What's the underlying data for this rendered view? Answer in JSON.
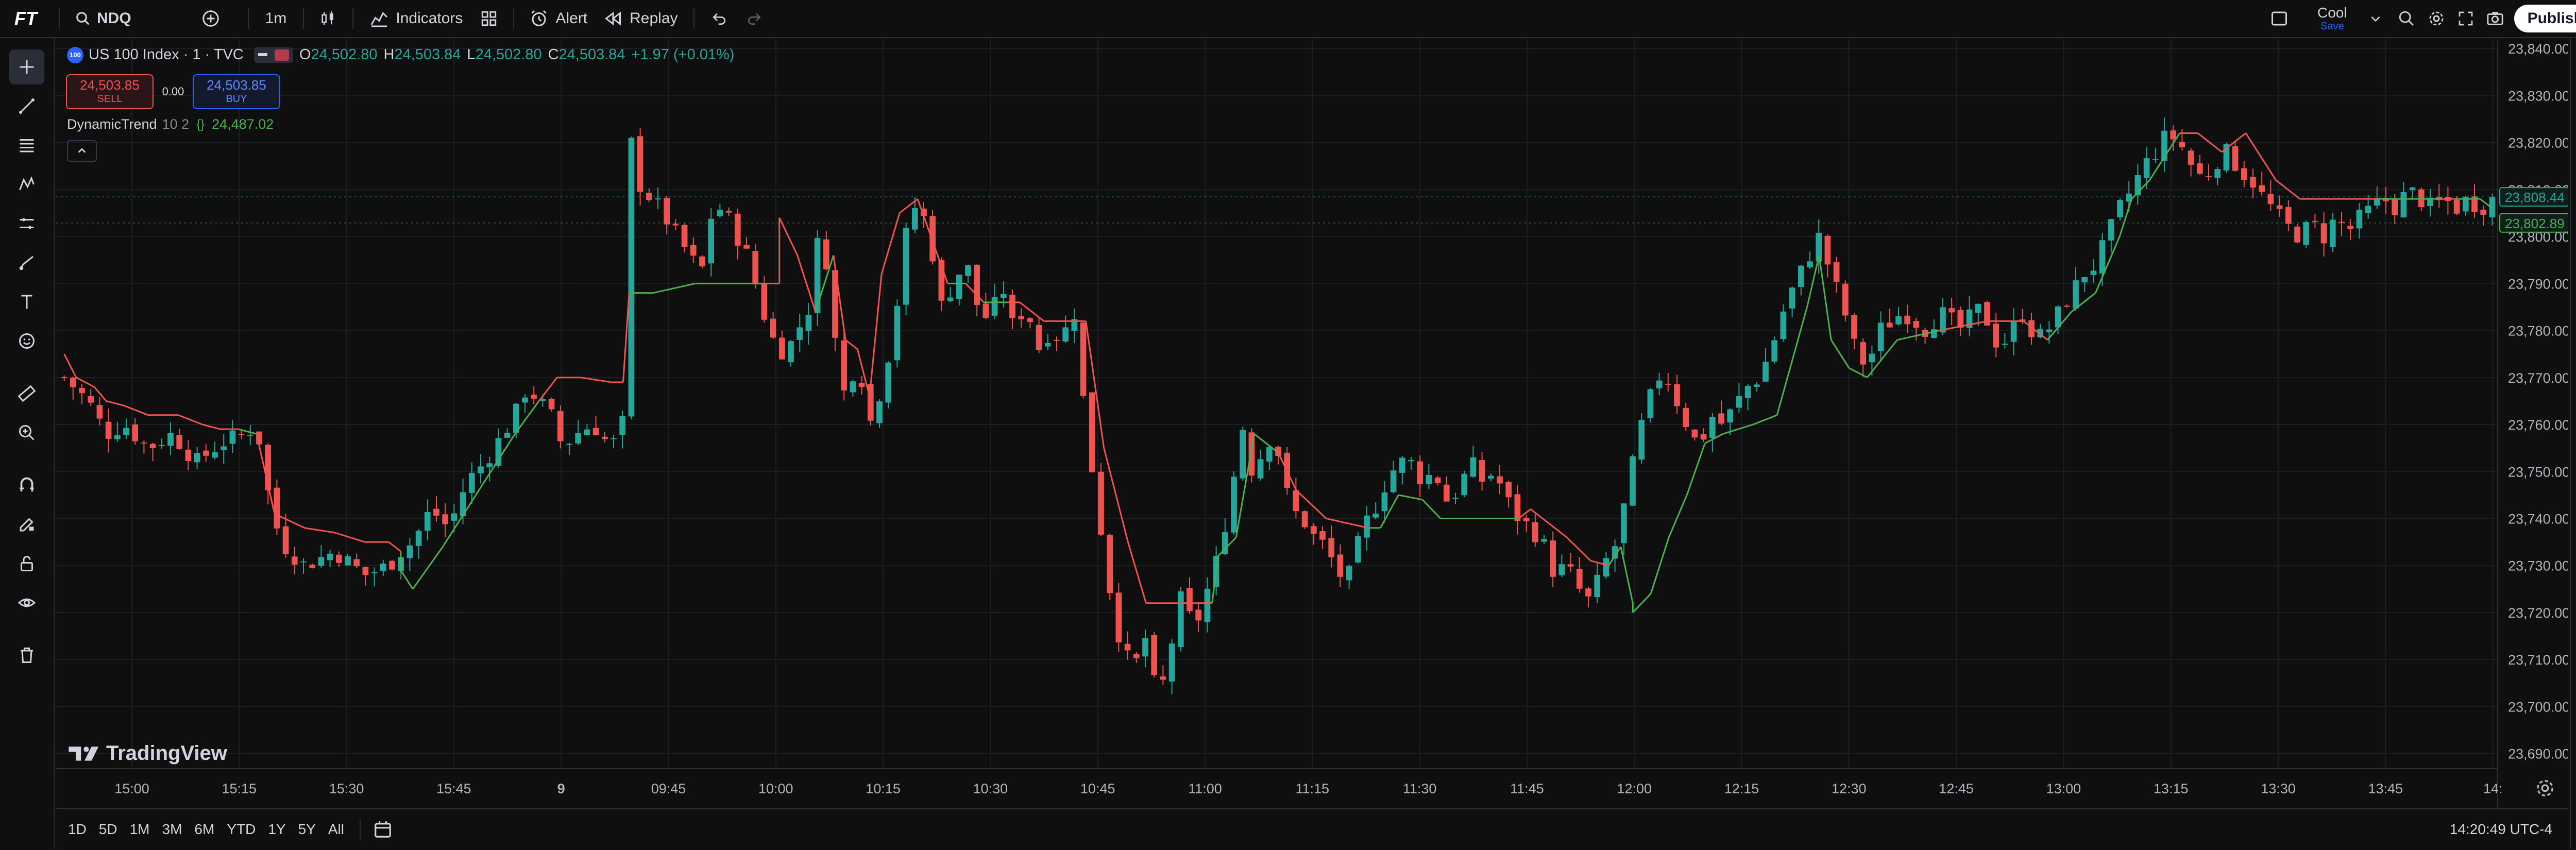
{
  "topbar": {
    "logo": "FT",
    "symbol": "NDQ",
    "interval": "1m",
    "indicators": "Indicators",
    "alert": "Alert",
    "replay": "Replay",
    "layout_name": "Cool",
    "layout_sub": "Save",
    "publish": "Publish"
  },
  "legend": {
    "title": "US 100 Index · 1 · TVC",
    "badge": "100",
    "o_label": "O",
    "o": "24,502.80",
    "h_label": "H",
    "h": "24,503.84",
    "l_label": "L",
    "l": "24,502.80",
    "c_label": "C",
    "c": "24,503.84",
    "chg": "+1.97 (+0.01%)",
    "sell_price": "24,503.85",
    "sell": "SELL",
    "spread": "0.00",
    "buy_price": "24,503.85",
    "buy": "BUY",
    "indicator_name": "DynamicTrend",
    "indicator_params": "10 2",
    "indicator_value": "24,487.02"
  },
  "watermark": "TradingView",
  "bottombar": {
    "ranges": [
      "1D",
      "5D",
      "1M",
      "3M",
      "6M",
      "YTD",
      "1Y",
      "5Y",
      "All"
    ],
    "clock": "14:20:49 UTC-4"
  },
  "colors": {
    "up": "#26a69a",
    "down": "#ef5350",
    "trend_up": "#4caf50",
    "trend_down": "#f05350",
    "bg": "#0f0f0f",
    "grid": "#1c1f26",
    "axis_text": "#b2b5be"
  },
  "chart_data": {
    "type": "candlestick",
    "y_ticks": [
      "23,840.00",
      "23,830.00",
      "23,820.00",
      "23,810.00",
      "23,800.00",
      "23,790.00",
      "23,780.00",
      "23,770.00",
      "23,760.00",
      "23,750.00",
      "23,740.00",
      "23,730.00",
      "23,720.00",
      "23,710.00",
      "23,700.00",
      "23,690.00"
    ],
    "ylim": [
      23687,
      23842
    ],
    "x_ticks": [
      "15:00",
      "15:15",
      "15:30",
      "15:45",
      "9",
      "09:45",
      "10:00",
      "10:15",
      "10:30",
      "10:45",
      "11:00",
      "11:15",
      "11:30",
      "11:45",
      "12:00",
      "12:15",
      "12:30",
      "12:45",
      "13:00",
      "13:15",
      "13:30",
      "13:45",
      "14:"
    ],
    "price_labels": [
      {
        "value": 23808.44,
        "text": "23,808.44"
      },
      {
        "value": 23802.89,
        "text": "23,802.89"
      }
    ],
    "candle_count": 275,
    "close_path": [
      [
        0,
        23770
      ],
      [
        8,
        23765
      ],
      [
        14,
        23758
      ],
      [
        20,
        23760
      ],
      [
        28,
        23755
      ],
      [
        36,
        23758
      ],
      [
        44,
        23752
      ],
      [
        52,
        23756
      ],
      [
        60,
        23758
      ],
      [
        64,
        23760
      ],
      [
        68,
        23745
      ],
      [
        72,
        23735
      ],
      [
        80,
        23730
      ],
      [
        90,
        23733
      ],
      [
        100,
        23728
      ],
      [
        108,
        23730
      ],
      [
        112,
        23733
      ],
      [
        116,
        23735
      ],
      [
        122,
        23742
      ],
      [
        128,
        23738
      ],
      [
        134,
        23748
      ],
      [
        140,
        23752
      ],
      [
        146,
        23758
      ],
      [
        150,
        23762
      ],
      [
        154,
        23768
      ],
      [
        158,
        23765
      ],
      [
        162,
        23762
      ],
      [
        166,
        23755
      ],
      [
        170,
        23758
      ],
      [
        176,
        23760
      ],
      [
        182,
        23755
      ],
      [
        187,
        23762
      ],
      [
        188,
        23822
      ],
      [
        192,
        23810
      ],
      [
        196,
        23808
      ],
      [
        200,
        23804
      ],
      [
        204,
        23800
      ],
      [
        208,
        23796
      ],
      [
        212,
        23792
      ],
      [
        216,
        23807
      ],
      [
        220,
        23805
      ],
      [
        224,
        23800
      ],
      [
        228,
        23795
      ],
      [
        232,
        23785
      ],
      [
        236,
        23778
      ],
      [
        240,
        23775
      ],
      [
        244,
        23780
      ],
      [
        248,
        23785
      ],
      [
        252,
        23805
      ],
      [
        256,
        23780
      ],
      [
        260,
        23765
      ],
      [
        264,
        23775
      ],
      [
        268,
        23760
      ],
      [
        272,
        23768
      ],
      [
        276,
        23780
      ],
      [
        280,
        23800
      ],
      [
        284,
        23808
      ],
      [
        288,
        23800
      ],
      [
        292,
        23785
      ],
      [
        296,
        23790
      ],
      [
        300,
        23795
      ],
      [
        304,
        23785
      ],
      [
        308,
        23782
      ],
      [
        312,
        23790
      ],
      [
        316,
        23780
      ],
      [
        320,
        23786
      ],
      [
        324,
        23776
      ],
      [
        328,
        23780
      ],
      [
        332,
        23778
      ],
      [
        336,
        23785
      ],
      [
        340,
        23760
      ],
      [
        344,
        23742
      ],
      [
        348,
        23725
      ],
      [
        352,
        23712
      ],
      [
        356,
        23708
      ],
      [
        360,
        23715
      ],
      [
        364,
        23700
      ],
      [
        368,
        23712
      ],
      [
        372,
        23724
      ],
      [
        376,
        23716
      ],
      [
        380,
        23724
      ],
      [
        384,
        23732
      ],
      [
        388,
        23744
      ],
      [
        392,
        23760
      ],
      [
        396,
        23748
      ],
      [
        400,
        23758
      ],
      [
        404,
        23754
      ],
      [
        408,
        23742
      ],
      [
        412,
        23740
      ],
      [
        416,
        23736
      ],
      [
        420,
        23734
      ],
      [
        424,
        23728
      ],
      [
        428,
        23728
      ],
      [
        432,
        23738
      ],
      [
        436,
        23742
      ],
      [
        440,
        23748
      ],
      [
        444,
        23752
      ],
      [
        448,
        23752
      ],
      [
        452,
        23748
      ],
      [
        456,
        23750
      ],
      [
        460,
        23744
      ],
      [
        464,
        23746
      ],
      [
        468,
        23752
      ],
      [
        472,
        23748
      ],
      [
        476,
        23750
      ],
      [
        480,
        23744
      ],
      [
        484,
        23740
      ],
      [
        488,
        23738
      ],
      [
        492,
        23735
      ],
      [
        496,
        23728
      ],
      [
        500,
        23730
      ],
      [
        504,
        23725
      ],
      [
        508,
        23722
      ],
      [
        512,
        23730
      ],
      [
        516,
        23734
      ],
      [
        520,
        23745
      ],
      [
        524,
        23758
      ],
      [
        528,
        23766
      ],
      [
        532,
        23772
      ],
      [
        536,
        23766
      ],
      [
        540,
        23760
      ],
      [
        544,
        23755
      ],
      [
        548,
        23762
      ],
      [
        552,
        23760
      ],
      [
        556,
        23764
      ],
      [
        560,
        23768
      ],
      [
        564,
        23770
      ],
      [
        568,
        23776
      ],
      [
        572,
        23784
      ],
      [
        576,
        23790
      ],
      [
        580,
        23795
      ],
      [
        584,
        23800
      ],
      [
        588,
        23792
      ],
      [
        592,
        23785
      ],
      [
        596,
        23776
      ],
      [
        600,
        23772
      ],
      [
        604,
        23780
      ],
      [
        608,
        23782
      ],
      [
        612,
        23784
      ],
      [
        616,
        23782
      ],
      [
        620,
        23780
      ],
      [
        624,
        23784
      ],
      [
        628,
        23782
      ],
      [
        632,
        23780
      ],
      [
        636,
        23785
      ],
      [
        640,
        23782
      ],
      [
        644,
        23776
      ],
      [
        648,
        23780
      ],
      [
        652,
        23784
      ],
      [
        656,
        23778
      ],
      [
        660,
        23780
      ],
      [
        664,
        23784
      ],
      [
        668,
        23788
      ],
      [
        672,
        23792
      ],
      [
        676,
        23794
      ],
      [
        680,
        23800
      ],
      [
        684,
        23806
      ],
      [
        688,
        23810
      ],
      [
        692,
        23815
      ],
      [
        696,
        23818
      ],
      [
        700,
        23822
      ],
      [
        704,
        23820
      ],
      [
        708,
        23815
      ],
      [
        712,
        23812
      ],
      [
        716,
        23816
      ],
      [
        720,
        23818
      ],
      [
        724,
        23814
      ],
      [
        728,
        23812
      ],
      [
        732,
        23808
      ],
      [
        736,
        23805
      ],
      [
        740,
        23802
      ],
      [
        744,
        23800
      ],
      [
        748,
        23803
      ],
      [
        752,
        23800
      ],
      [
        756,
        23804
      ],
      [
        760,
        23801
      ],
      [
        764,
        23804
      ],
      [
        768,
        23806
      ],
      [
        772,
        23808
      ],
      [
        776,
        23806
      ],
      [
        780,
        23810
      ],
      [
        784,
        23808
      ],
      [
        788,
        23806
      ],
      [
        792,
        23808
      ],
      [
        796,
        23806
      ],
      [
        800,
        23808
      ],
      [
        804,
        23806
      ],
      [
        808,
        23808
      ]
    ],
    "trend_path": [
      [
        0,
        23775
      ],
      [
        4,
        23770
      ],
      [
        10,
        23768
      ],
      [
        14,
        23765
      ],
      [
        20,
        23764
      ],
      [
        28,
        23762
      ],
      [
        38,
        23762
      ],
      [
        46,
        23760
      ],
      [
        52,
        23759
      ],
      [
        58,
        23759
      ],
      [
        64,
        23758
      ],
      [
        70,
        23741
      ],
      [
        80,
        23738
      ],
      [
        90,
        23737
      ],
      [
        100,
        23735
      ],
      [
        108,
        23735
      ],
      [
        112,
        23733
      ],
      [
        112,
        23729
      ],
      [
        116,
        23725
      ],
      [
        126,
        23734
      ],
      [
        134,
        23742
      ],
      [
        142,
        23750
      ],
      [
        150,
        23758
      ],
      [
        158,
        23765
      ],
      [
        164,
        23770
      ],
      [
        172,
        23770
      ],
      [
        182,
        23769
      ],
      [
        186,
        23769
      ],
      [
        188,
        23788
      ],
      [
        196,
        23788
      ],
      [
        210,
        23790
      ],
      [
        234,
        23790
      ],
      [
        238,
        23790
      ],
      [
        238,
        23804
      ],
      [
        244,
        23796
      ],
      [
        250,
        23784
      ],
      [
        256,
        23796
      ],
      [
        260,
        23778
      ],
      [
        264,
        23776
      ],
      [
        268,
        23766
      ],
      [
        272,
        23792
      ],
      [
        278,
        23805
      ],
      [
        284,
        23808
      ],
      [
        294,
        23790
      ],
      [
        300,
        23790
      ],
      [
        306,
        23786
      ],
      [
        314,
        23786
      ],
      [
        318,
        23786
      ],
      [
        326,
        23782
      ],
      [
        340,
        23782
      ],
      [
        346,
        23755
      ],
      [
        354,
        23735
      ],
      [
        360,
        23722
      ],
      [
        374,
        23722
      ],
      [
        382,
        23722
      ],
      [
        384,
        23732
      ],
      [
        390,
        23736
      ],
      [
        396,
        23758
      ],
      [
        404,
        23754
      ],
      [
        410,
        23746
      ],
      [
        420,
        23740
      ],
      [
        434,
        23738
      ],
      [
        438,
        23738
      ],
      [
        444,
        23745
      ],
      [
        452,
        23744
      ],
      [
        458,
        23740
      ],
      [
        476,
        23740
      ],
      [
        484,
        23740
      ],
      [
        488,
        23742
      ],
      [
        492,
        23740
      ],
      [
        500,
        23736
      ],
      [
        508,
        23731
      ],
      [
        514,
        23730
      ],
      [
        518,
        23734
      ],
      [
        522,
        23722
      ],
      [
        522,
        23720
      ],
      [
        528,
        23724
      ],
      [
        534,
        23736
      ],
      [
        540,
        23745
      ],
      [
        546,
        23756
      ],
      [
        552,
        23758
      ],
      [
        562,
        23760
      ],
      [
        570,
        23762
      ],
      [
        580,
        23785
      ],
      [
        584,
        23796
      ],
      [
        588,
        23778
      ],
      [
        594,
        23772
      ],
      [
        600,
        23770
      ],
      [
        610,
        23778
      ],
      [
        624,
        23780
      ],
      [
        640,
        23782
      ],
      [
        652,
        23782
      ],
      [
        660,
        23778
      ],
      [
        668,
        23784
      ],
      [
        676,
        23788
      ],
      [
        684,
        23800
      ],
      [
        688,
        23808
      ],
      [
        694,
        23812
      ],
      [
        704,
        23822
      ],
      [
        710,
        23822
      ],
      [
        718,
        23818
      ],
      [
        726,
        23822
      ],
      [
        736,
        23812
      ],
      [
        744,
        23808
      ],
      [
        754,
        23808
      ],
      [
        770,
        23808
      ],
      [
        790,
        23808
      ],
      [
        796,
        23808
      ],
      [
        804,
        23808
      ],
      [
        808,
        23806
      ]
    ]
  }
}
